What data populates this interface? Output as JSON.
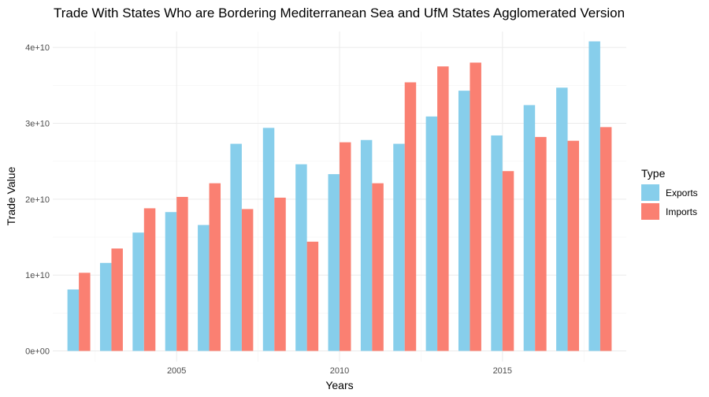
{
  "chart_data": {
    "type": "bar",
    "title": "Trade With States Who are Bordering Mediterranean Sea and UfM States Agglomerated Version",
    "xlabel": "Years",
    "ylabel": "Trade Value",
    "x": [
      2002,
      2003,
      2004,
      2005,
      2006,
      2007,
      2008,
      2009,
      2010,
      2011,
      2012,
      2013,
      2014,
      2015,
      2016,
      2017,
      2018
    ],
    "x_ticks": [
      2005,
      2010,
      2015
    ],
    "x_tick_labels": [
      "2005",
      "2010",
      "2015"
    ],
    "xlim": [
      2001.2,
      2018.8
    ],
    "ylim": [
      -1400000000.0,
      42100000000.0
    ],
    "y_ticks": [
      0,
      10000000000.0,
      20000000000.0,
      30000000000.0,
      40000000000.0
    ],
    "y_tick_labels": [
      "0e+00",
      "1e+10",
      "2e+10",
      "3e+10",
      "4e+10"
    ],
    "grid": true,
    "legend_title": "Type",
    "legend_position": "right",
    "series": [
      {
        "name": "Exports",
        "color": "#87ceeb",
        "values": [
          8100000000.0,
          11600000000.0,
          15600000000.0,
          18300000000.0,
          16600000000.0,
          27300000000.0,
          29400000000.0,
          24600000000.0,
          23300000000.0,
          27800000000.0,
          27300000000.0,
          30900000000.0,
          34300000000.0,
          28400000000.0,
          32400000000.0,
          34700000000.0,
          40800000000.0
        ]
      },
      {
        "name": "Imports",
        "color": "#fa8072",
        "values": [
          10300000000.0,
          13500000000.0,
          18800000000.0,
          20300000000.0,
          22100000000.0,
          18700000000.0,
          20200000000.0,
          14400000000.0,
          27500000000.0,
          22100000000.0,
          35400000000.0,
          37500000000.0,
          38000000000.0,
          23700000000.0,
          28200000000.0,
          27700000000.0,
          29500000000.0
        ]
      }
    ]
  }
}
